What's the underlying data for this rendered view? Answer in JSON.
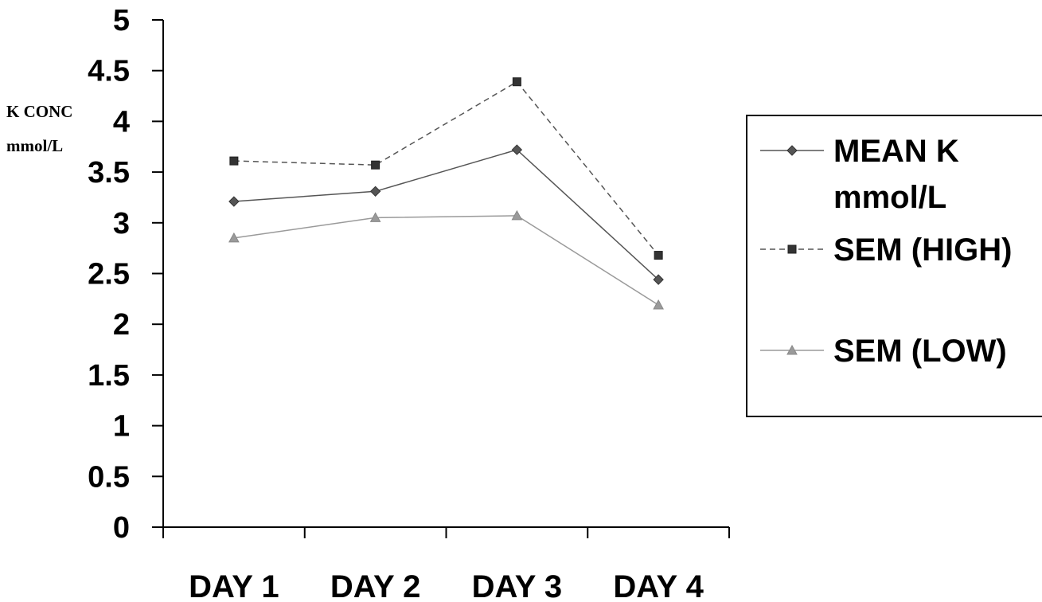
{
  "chart_data": {
    "type": "line",
    "title": "",
    "xlabel": "",
    "ylabel": [
      "K CONC",
      "mmol/L"
    ],
    "categories": [
      "DAY 1",
      "DAY 2",
      "DAY 3",
      "DAY 4"
    ],
    "ylim": [
      0,
      5
    ],
    "yticks": [
      "0",
      "0.5",
      "1",
      "1.5",
      "2",
      "2.5",
      "3",
      "3.5",
      "4",
      "4.5",
      "5"
    ],
    "grid": false,
    "legend_position": "right",
    "series": [
      {
        "name": [
          "MEAN K",
          "mmol/L"
        ],
        "values": [
          3.21,
          3.31,
          3.72,
          2.44
        ],
        "color": "#555555",
        "marker": "diamond",
        "dash": "solid"
      },
      {
        "name": [
          "SEM (HIGH)"
        ],
        "values": [
          3.61,
          3.57,
          4.39,
          2.68
        ],
        "color": "#555555",
        "marker": "square",
        "dash": "dashed"
      },
      {
        "name": [
          "SEM (LOW)"
        ],
        "values": [
          2.85,
          3.05,
          3.07,
          2.19
        ],
        "color": "#9a9a9a",
        "marker": "triangle",
        "dash": "solid"
      }
    ]
  }
}
